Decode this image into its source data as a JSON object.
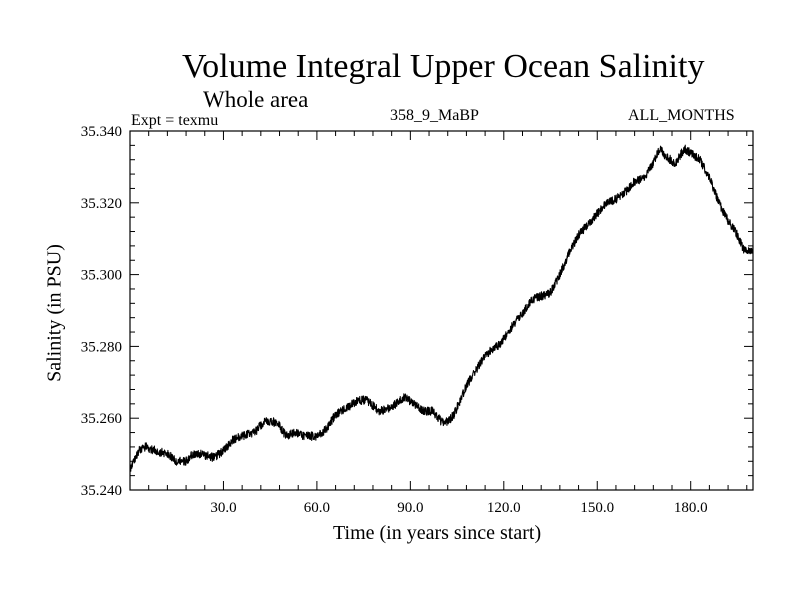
{
  "header": {
    "title": "Volume Integral Upper Ocean Salinity",
    "subtitle": "Whole area",
    "experiment": "Expt = texmu",
    "run": "358_9_MaBP",
    "months": "ALL_MONTHS"
  },
  "chart_data": {
    "type": "line",
    "title": "Volume Integral Upper Ocean Salinity",
    "subtitle": "Whole area",
    "xlabel": "Time (in years since start)",
    "ylabel": "Salinity (in PSU)",
    "xlim": [
      0,
      200
    ],
    "ylim": [
      35.24,
      35.34
    ],
    "x_ticks": [
      30,
      60,
      90,
      120,
      150,
      180
    ],
    "x_tick_labels": [
      "30.0",
      "60.0",
      "90.0",
      "120.0",
      "150.0",
      "180.0"
    ],
    "y_ticks": [
      35.24,
      35.26,
      35.28,
      35.3,
      35.32,
      35.34
    ],
    "y_tick_labels": [
      "35.240",
      "35.260",
      "35.280",
      "35.300",
      "35.320",
      "35.340"
    ],
    "grid": false,
    "series": [
      {
        "name": "Salinity",
        "color": "#000000",
        "x": [
          0,
          3,
          5,
          8,
          12,
          15,
          18,
          20,
          23,
          27,
          30,
          33,
          36,
          40,
          43,
          46,
          48,
          50,
          53,
          56,
          60,
          63,
          66,
          70,
          73,
          76,
          80,
          84,
          88,
          91,
          94,
          97,
          100,
          102,
          104,
          106,
          108,
          110,
          113,
          116,
          118,
          120,
          123,
          126,
          129,
          132,
          135,
          138,
          141,
          144,
          147,
          150,
          153,
          156,
          159,
          162,
          165,
          168,
          170,
          172,
          175,
          178,
          180,
          183,
          186,
          189,
          192,
          195,
          197,
          200
        ],
        "y": [
          35.246,
          35.251,
          35.252,
          35.251,
          35.25,
          35.248,
          35.248,
          35.25,
          35.25,
          35.249,
          35.251,
          35.254,
          35.255,
          35.256,
          35.259,
          35.259,
          35.258,
          35.255,
          35.256,
          35.255,
          35.255,
          35.257,
          35.261,
          35.263,
          35.265,
          35.265,
          35.262,
          35.263,
          35.266,
          35.264,
          35.262,
          35.262,
          35.259,
          35.259,
          35.261,
          35.265,
          35.269,
          35.272,
          35.276,
          35.279,
          35.28,
          35.282,
          35.286,
          35.289,
          35.293,
          35.294,
          35.295,
          35.3,
          35.306,
          35.311,
          35.314,
          35.317,
          35.32,
          35.321,
          35.323,
          35.326,
          35.327,
          35.331,
          35.335,
          35.333,
          35.331,
          35.335,
          35.334,
          35.332,
          35.327,
          35.32,
          35.315,
          35.311,
          35.307,
          35.307
        ]
      }
    ]
  }
}
